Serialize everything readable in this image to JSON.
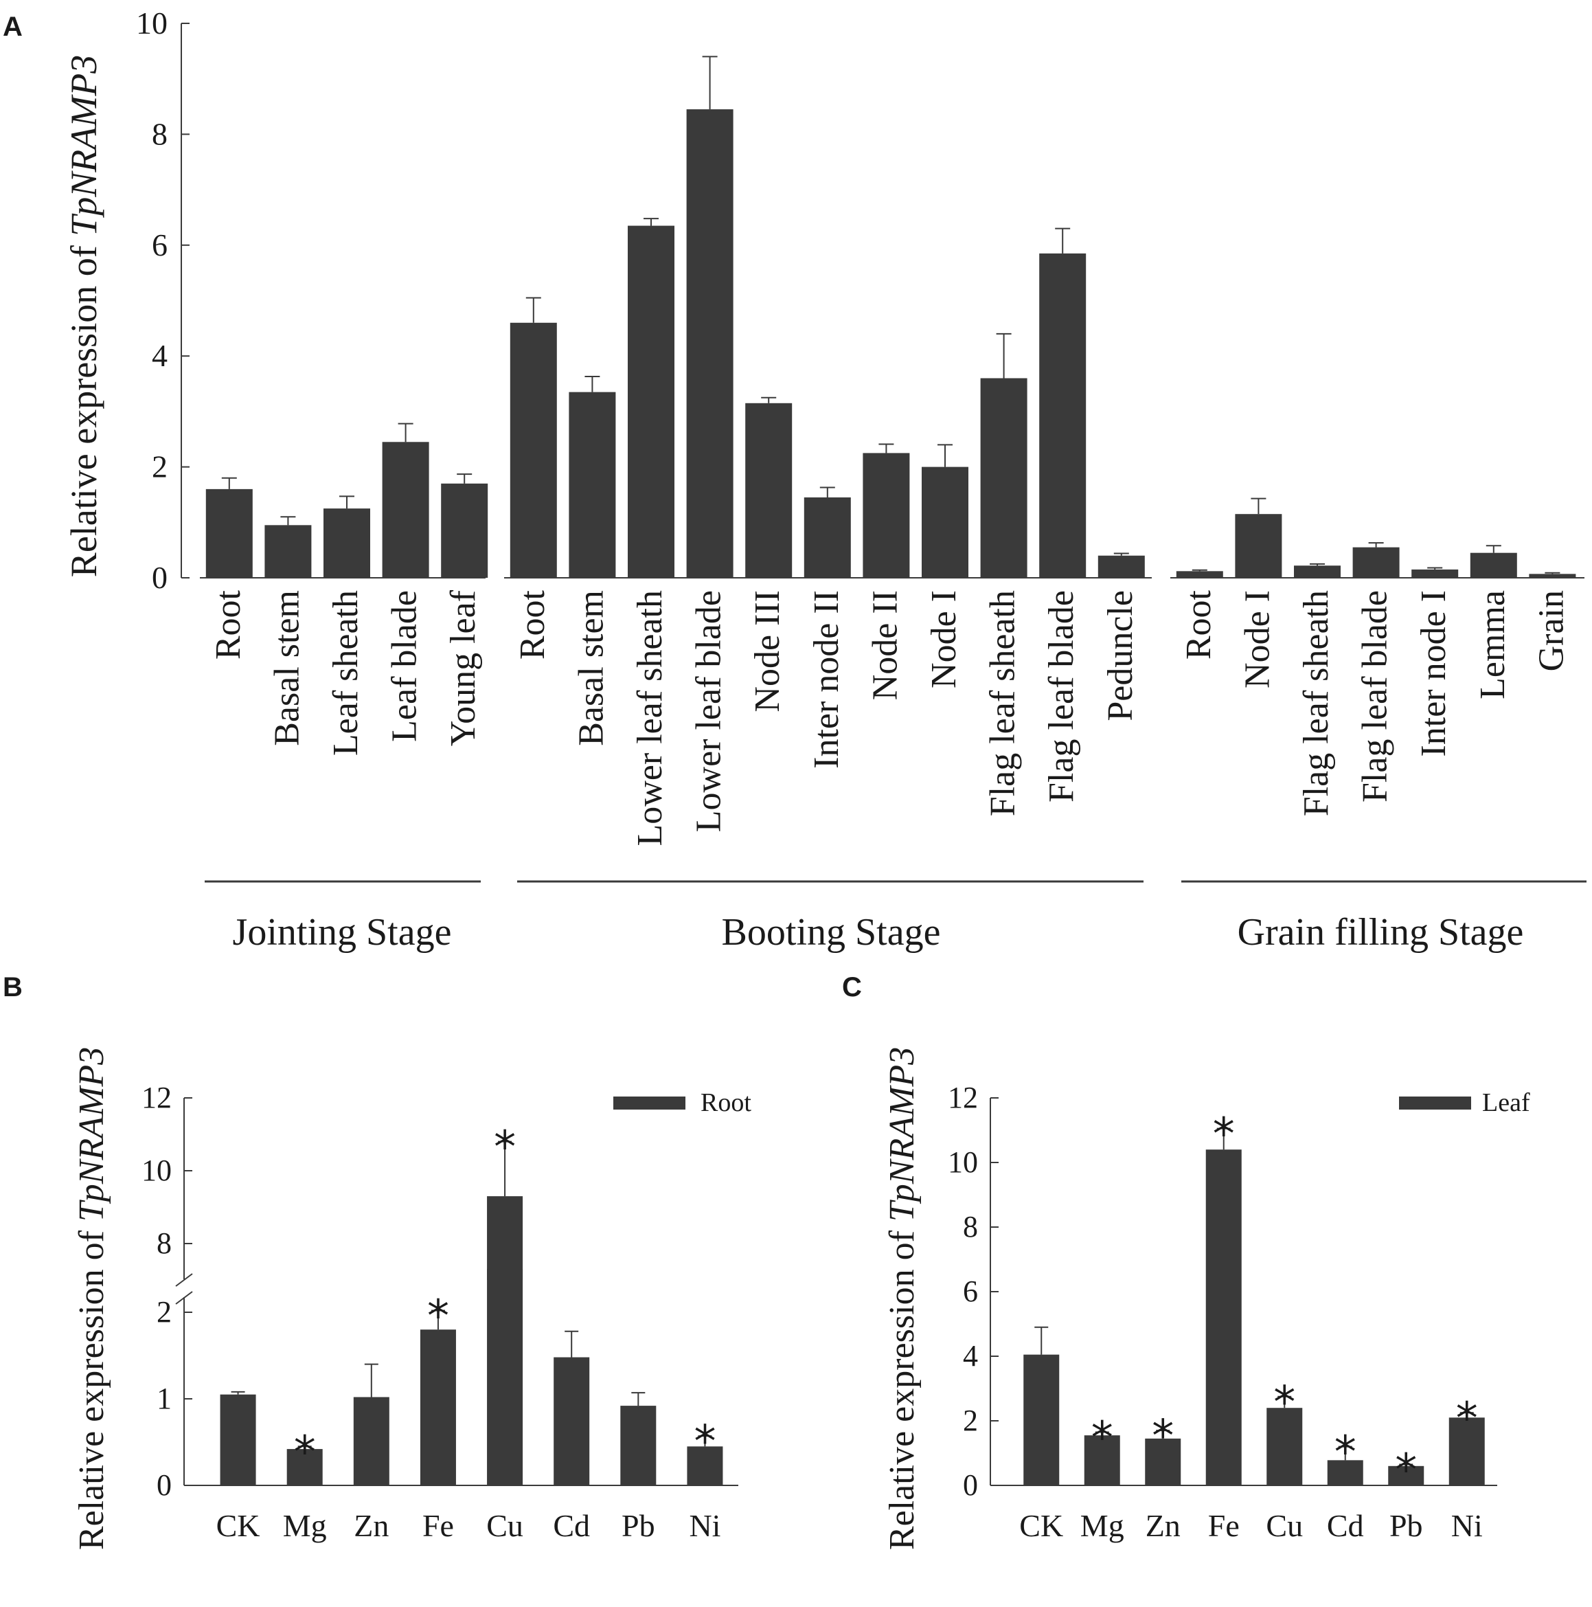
{
  "colors": {
    "bar": "#3a3a3a",
    "axis": "#3a3a3a",
    "text": "#1a1a1a",
    "background": "#ffffff"
  },
  "panel_labels": {
    "a": "A",
    "b": "B",
    "c": "C"
  },
  "ylabel_prefix": "Relative expression of ",
  "ylabel_gene": "TpNRAMP3",
  "chart_data": [
    {
      "id": "A",
      "type": "bar",
      "ylabel": "Relative expression of TpNRAMP3",
      "ylim": [
        0,
        10
      ],
      "yticks": [
        0,
        2,
        4,
        6,
        8,
        10
      ],
      "groups": [
        {
          "name": "Jointing Stage",
          "categories": [
            "Root",
            "Basal stem",
            "Leaf sheath",
            "Leaf blade",
            "Young leaf"
          ],
          "values": [
            1.6,
            0.95,
            1.25,
            2.45,
            1.7
          ],
          "errors": [
            0.2,
            0.15,
            0.22,
            0.33,
            0.17
          ]
        },
        {
          "name": "Booting Stage",
          "categories": [
            "Root",
            "Basal stem",
            "Lower leaf sheath",
            "Lower leaf blade",
            "Node III",
            "Inter node II",
            "Node II",
            "Node I",
            "Flag leaf sheath",
            "Flag leaf blade",
            "Peduncle"
          ],
          "values": [
            4.6,
            3.35,
            6.35,
            8.45,
            3.15,
            1.45,
            2.25,
            2.0,
            3.6,
            5.85,
            0.4
          ],
          "errors": [
            0.45,
            0.28,
            0.13,
            0.95,
            0.1,
            0.18,
            0.16,
            0.4,
            0.8,
            0.45,
            0.04
          ]
        },
        {
          "name": "Grain filling Stage",
          "categories": [
            "Root",
            "Node I",
            "Flag leaf sheath",
            "Flag leaf blade",
            "Inter node I",
            "Lemma",
            "Grain"
          ],
          "values": [
            0.12,
            1.15,
            0.22,
            0.55,
            0.15,
            0.45,
            0.07
          ],
          "errors": [
            0.02,
            0.28,
            0.03,
            0.08,
            0.03,
            0.13,
            0.02
          ]
        }
      ]
    },
    {
      "id": "B",
      "type": "bar",
      "ylabel": "Relative expression of TpNRAMP3",
      "legend": "Root",
      "legend_position": "top-right",
      "axis_break": [
        2.5,
        7.0
      ],
      "yticks_lower": [
        0,
        1,
        2
      ],
      "yticks_upper": [
        8,
        10,
        12
      ],
      "categories": [
        "CK",
        "Mg",
        "Zn",
        "Fe",
        "Cu",
        "Cd",
        "Pb",
        "Ni"
      ],
      "values": [
        1.05,
        0.42,
        1.02,
        1.8,
        9.3,
        1.48,
        0.92,
        0.45
      ],
      "errors": [
        0.03,
        0.03,
        0.38,
        0.22,
        1.5,
        0.3,
        0.15,
        0.12
      ],
      "significant": [
        false,
        true,
        false,
        true,
        true,
        false,
        false,
        true
      ],
      "star": "*"
    },
    {
      "id": "C",
      "type": "bar",
      "ylabel": "Relative expression of TpNRAMP3",
      "legend": "Leaf",
      "legend_position": "top-right",
      "ylim": [
        0,
        12
      ],
      "yticks": [
        0,
        2,
        4,
        6,
        8,
        10,
        12
      ],
      "categories": [
        "CK",
        "Mg",
        "Zn",
        "Fe",
        "Cu",
        "Cd",
        "Pb",
        "Ni"
      ],
      "values": [
        4.05,
        1.55,
        1.45,
        10.4,
        2.4,
        0.78,
        0.6,
        2.1
      ],
      "errors": [
        0.85,
        0.1,
        0.25,
        0.65,
        0.35,
        0.42,
        0.05,
        0.15
      ],
      "significant": [
        false,
        true,
        true,
        true,
        true,
        true,
        true,
        true
      ],
      "star": "*"
    }
  ]
}
